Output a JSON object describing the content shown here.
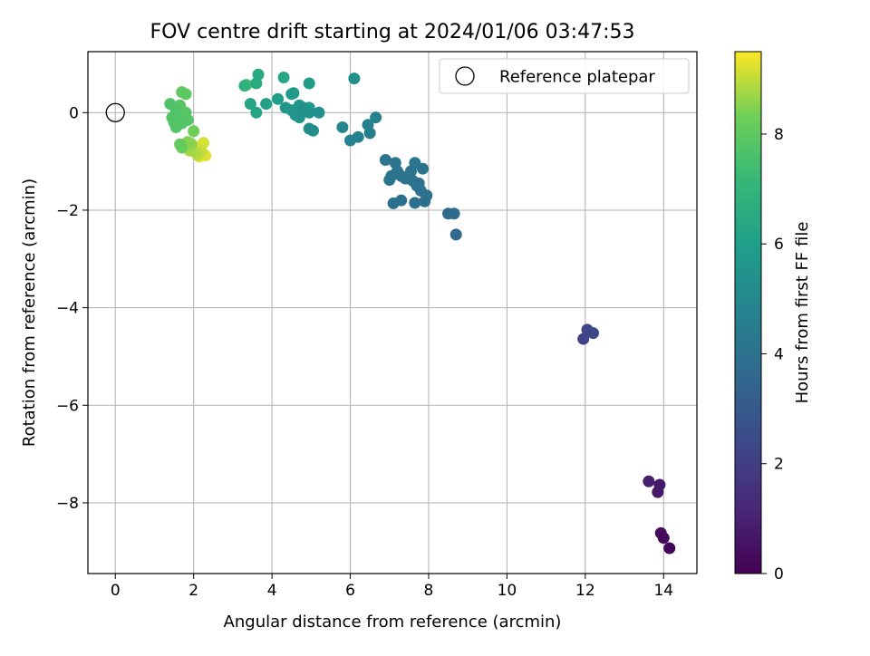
{
  "chart_data": {
    "type": "scatter",
    "title": "FOV centre drift starting at 2024/01/06 03:47:53",
    "xlabel": "Angular distance from reference (arcmin)",
    "ylabel": "Rotation from reference (arcmin)",
    "xlim": [
      -0.7,
      14.85
    ],
    "ylim": [
      -9.45,
      1.25
    ],
    "xticks": [
      0,
      2,
      4,
      6,
      8,
      10,
      12,
      14
    ],
    "yticks": [
      0,
      -2,
      -4,
      -6,
      -8
    ],
    "xtick_labels": [
      "0",
      "2",
      "4",
      "6",
      "8",
      "10",
      "12",
      "14"
    ],
    "ytick_labels": [
      "0",
      "−2",
      "−4",
      "−6",
      "−8"
    ],
    "grid": true,
    "legend": {
      "position": "top-right",
      "entries": [
        "Reference platepar"
      ]
    },
    "reference_point": {
      "x": 0,
      "y": 0
    },
    "colorbar": {
      "label": "Hours from first FF file",
      "colormap": "viridis",
      "range": [
        0,
        9.5
      ],
      "ticks": [
        0,
        2,
        4,
        6,
        8
      ],
      "tick_labels": [
        "0",
        "2",
        "4",
        "6",
        "8"
      ]
    },
    "points": [
      {
        "x": 14.15,
        "y": -8.93,
        "t": 0.1
      },
      {
        "x": 14.0,
        "y": -8.72,
        "t": 0.2
      },
      {
        "x": 13.93,
        "y": -8.62,
        "t": 0.3
      },
      {
        "x": 13.85,
        "y": -7.78,
        "t": 0.7
      },
      {
        "x": 13.9,
        "y": -7.63,
        "t": 0.8
      },
      {
        "x": 13.62,
        "y": -7.56,
        "t": 0.9
      },
      {
        "x": 11.95,
        "y": -4.64,
        "t": 2.2
      },
      {
        "x": 12.05,
        "y": -4.45,
        "t": 2.3
      },
      {
        "x": 12.2,
        "y": -4.52,
        "t": 2.35
      },
      {
        "x": 8.7,
        "y": -2.5,
        "t": 3.6
      },
      {
        "x": 8.5,
        "y": -2.07,
        "t": 3.7
      },
      {
        "x": 8.65,
        "y": -2.07,
        "t": 3.75
      },
      {
        "x": 7.1,
        "y": -1.86,
        "t": 3.95
      },
      {
        "x": 7.3,
        "y": -1.8,
        "t": 3.95
      },
      {
        "x": 7.65,
        "y": -1.85,
        "t": 3.95
      },
      {
        "x": 7.9,
        "y": -1.82,
        "t": 3.95
      },
      {
        "x": 7.95,
        "y": -1.7,
        "t": 4.0
      },
      {
        "x": 7.8,
        "y": -1.6,
        "t": 4.0
      },
      {
        "x": 7.7,
        "y": -1.5,
        "t": 4.0
      },
      {
        "x": 7.6,
        "y": -1.4,
        "t": 4.05
      },
      {
        "x": 7.45,
        "y": -1.35,
        "t": 4.05
      },
      {
        "x": 7.3,
        "y": -1.3,
        "t": 4.05
      },
      {
        "x": 7.2,
        "y": -1.2,
        "t": 4.1
      },
      {
        "x": 7.05,
        "y": -1.3,
        "t": 4.1
      },
      {
        "x": 7.0,
        "y": -1.38,
        "t": 4.1
      },
      {
        "x": 7.55,
        "y": -1.2,
        "t": 4.1
      },
      {
        "x": 7.85,
        "y": -1.15,
        "t": 4.1
      },
      {
        "x": 7.65,
        "y": -1.03,
        "t": 4.15
      },
      {
        "x": 7.15,
        "y": -1.03,
        "t": 4.15
      },
      {
        "x": 6.9,
        "y": -0.97,
        "t": 4.2
      },
      {
        "x": 7.4,
        "y": -1.35,
        "t": 4.05
      },
      {
        "x": 7.75,
        "y": -1.45,
        "t": 4.05
      },
      {
        "x": 6.5,
        "y": -0.42,
        "t": 4.6
      },
      {
        "x": 6.45,
        "y": -0.25,
        "t": 4.6
      },
      {
        "x": 6.65,
        "y": -0.1,
        "t": 4.65
      },
      {
        "x": 6.2,
        "y": -0.5,
        "t": 4.7
      },
      {
        "x": 6.0,
        "y": -0.57,
        "t": 4.75
      },
      {
        "x": 5.8,
        "y": -0.3,
        "t": 4.9
      },
      {
        "x": 6.1,
        "y": 0.7,
        "t": 5.4
      },
      {
        "x": 5.05,
        "y": -0.37,
        "t": 5.2
      },
      {
        "x": 4.95,
        "y": -0.33,
        "t": 5.25
      },
      {
        "x": 5.2,
        "y": 0.0,
        "t": 5.3
      },
      {
        "x": 4.95,
        "y": 0.0,
        "t": 5.35
      },
      {
        "x": 4.8,
        "y": 0.1,
        "t": 5.4
      },
      {
        "x": 4.7,
        "y": -0.1,
        "t": 5.45
      },
      {
        "x": 4.6,
        "y": -0.05,
        "t": 5.5
      },
      {
        "x": 4.5,
        "y": 0.05,
        "t": 5.55
      },
      {
        "x": 4.35,
        "y": 0.1,
        "t": 5.6
      },
      {
        "x": 4.7,
        "y": 0.15,
        "t": 5.65
      },
      {
        "x": 4.95,
        "y": 0.1,
        "t": 5.7
      },
      {
        "x": 4.5,
        "y": 0.38,
        "t": 5.8
      },
      {
        "x": 4.55,
        "y": 0.4,
        "t": 5.85
      },
      {
        "x": 4.15,
        "y": 0.28,
        "t": 5.95
      },
      {
        "x": 3.85,
        "y": 0.18,
        "t": 6.1
      },
      {
        "x": 3.6,
        "y": 0.0,
        "t": 6.2
      },
      {
        "x": 3.45,
        "y": 0.18,
        "t": 6.25
      },
      {
        "x": 4.95,
        "y": 0.6,
        "t": 5.9
      },
      {
        "x": 4.3,
        "y": 0.72,
        "t": 6.3
      },
      {
        "x": 3.6,
        "y": 0.6,
        "t": 6.5
      },
      {
        "x": 3.65,
        "y": 0.78,
        "t": 6.45
      },
      {
        "x": 3.3,
        "y": 0.55,
        "t": 6.9
      },
      {
        "x": 3.35,
        "y": 0.57,
        "t": 7.5
      },
      {
        "x": 1.4,
        "y": 0.18,
        "t": 7.7
      },
      {
        "x": 1.55,
        "y": 0.05,
        "t": 7.7
      },
      {
        "x": 1.45,
        "y": -0.1,
        "t": 7.75
      },
      {
        "x": 1.5,
        "y": -0.2,
        "t": 7.75
      },
      {
        "x": 1.55,
        "y": -0.3,
        "t": 7.8
      },
      {
        "x": 1.7,
        "y": -0.22,
        "t": 7.8
      },
      {
        "x": 1.85,
        "y": -0.15,
        "t": 7.8
      },
      {
        "x": 1.75,
        "y": 0.02,
        "t": 7.85
      },
      {
        "x": 1.8,
        "y": 0.0,
        "t": 7.85
      },
      {
        "x": 1.65,
        "y": 0.15,
        "t": 7.85
      },
      {
        "x": 1.7,
        "y": 0.42,
        "t": 7.95
      },
      {
        "x": 1.8,
        "y": 0.38,
        "t": 8.0
      },
      {
        "x": 1.6,
        "y": -0.1,
        "t": 7.9
      },
      {
        "x": 1.65,
        "y": -0.65,
        "t": 8.1
      },
      {
        "x": 1.7,
        "y": -0.72,
        "t": 8.2
      },
      {
        "x": 2.0,
        "y": -0.38,
        "t": 8.3
      },
      {
        "x": 1.85,
        "y": -0.6,
        "t": 8.5
      },
      {
        "x": 1.95,
        "y": -0.65,
        "t": 8.6
      },
      {
        "x": 1.9,
        "y": -0.78,
        "t": 8.75
      },
      {
        "x": 2.05,
        "y": -0.82,
        "t": 8.85
      },
      {
        "x": 2.1,
        "y": -0.87,
        "t": 8.95
      },
      {
        "x": 2.2,
        "y": -0.8,
        "t": 9.05
      },
      {
        "x": 2.25,
        "y": -0.62,
        "t": 9.15
      },
      {
        "x": 2.3,
        "y": -0.88,
        "t": 9.25
      },
      {
        "x": 2.15,
        "y": -0.9,
        "t": 9.35
      },
      {
        "x": 2.0,
        "y": -0.7,
        "t": 9.4
      }
    ]
  }
}
